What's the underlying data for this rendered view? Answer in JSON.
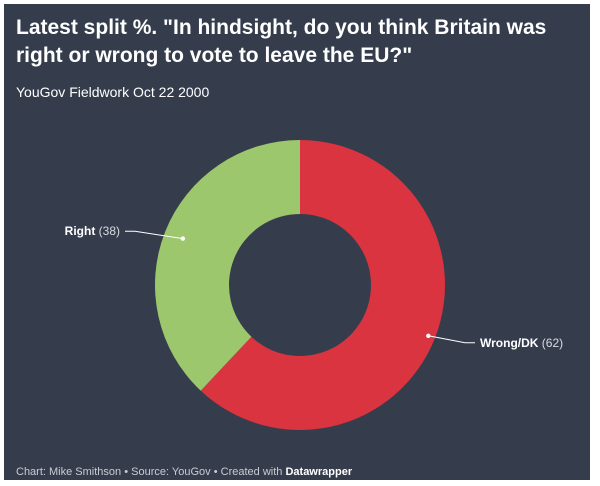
{
  "title": "Latest split %. \"In hindsight, do you think Britain was right or wrong to vote to leave the EU?\"",
  "subtitle": "YouGov Fieldwork Oct 22 2000",
  "footer": {
    "chart_credit": "Chart: Mike Smithson",
    "source": "Source: YouGov",
    "created_with_prefix": "Created with",
    "tool": "Datawrapper",
    "separator": "•"
  },
  "colors": {
    "background": "#353d4d",
    "right": "#9dc76c",
    "wrong": "#d9343f"
  },
  "chart_data": {
    "type": "pie",
    "donut": true,
    "start_angle_deg": 0,
    "direction": "clockwise",
    "slices": [
      {
        "label": "Wrong/DK",
        "value": 62,
        "value_text": "(62)",
        "color": "#d9343f"
      },
      {
        "label": "Right",
        "value": 38,
        "value_text": "(38)",
        "color": "#9dc76c"
      }
    ]
  }
}
